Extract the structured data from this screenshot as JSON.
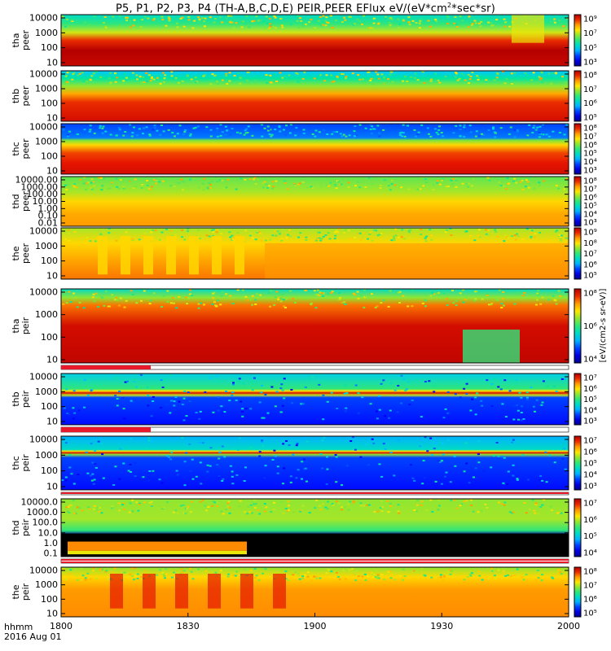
{
  "title": "P5, P1, P2, P3, P4 (TH-A,B,C,D,E) PEIR,PEER EFlux eV/(eV*cm2*sec*sr)",
  "title_parts": {
    "prefix": "P5, P1, P2, P3, P4 (TH-A,B,C,D,E) PEIR,PEER EFlux eV/(eV*cm",
    "sup": "2",
    "suffix": "*sec*sr)"
  },
  "footer": {
    "time_label": "hhmm",
    "date_label": "2016 Aug 01"
  },
  "colorbar_label": "[eV/(cm2-s sr-eV)]",
  "chart_data": {
    "type": "heatmap",
    "x_axis": {
      "range": [
        1800,
        2000
      ],
      "ticks": [
        1800,
        1830,
        1900,
        1930,
        2000
      ],
      "units": "hhmm"
    },
    "panels": [
      {
        "probe": "tha",
        "species": "peer",
        "ylabel_top": "tha",
        "ylabel_bottom": "peer",
        "yticks": [
          "10000",
          "1000",
          "100",
          "10"
        ],
        "log_scale": true,
        "colorbar_ticks": [
          "10⁹",
          "10⁷",
          "10⁵",
          "10³"
        ]
      },
      {
        "probe": "thb",
        "species": "peer",
        "ylabel_top": "thb",
        "ylabel_bottom": "peer",
        "yticks": [
          "10000",
          "1000",
          "100",
          "10"
        ],
        "log_scale": true,
        "colorbar_ticks": [
          "10⁸",
          "10⁷",
          "10⁶",
          "10⁵"
        ]
      },
      {
        "probe": "thc",
        "species": "peer",
        "ylabel_top": "thc",
        "ylabel_bottom": "peer",
        "yticks": [
          "10000",
          "1000",
          "100",
          "10"
        ],
        "log_scale": true,
        "colorbar_ticks": [
          "10⁸",
          "10⁷",
          "10⁶",
          "10⁵",
          "10⁴",
          "10³"
        ]
      },
      {
        "probe": "thd",
        "species": "peer",
        "ylabel_top": "thd",
        "ylabel_bottom": "peer",
        "yticks": [
          "10000.00",
          "1000.00",
          "100.00",
          "10.00",
          "1.00",
          "0.10",
          "0.01"
        ],
        "log_scale": true,
        "colorbar_ticks": [
          "10⁸",
          "10⁷",
          "10⁶",
          "10⁵",
          "10⁴",
          "10³"
        ]
      },
      {
        "probe": "the",
        "species": "peer",
        "ylabel_top": "the",
        "ylabel_bottom": "peer",
        "yticks": [
          "10000",
          "1000",
          "100",
          "10"
        ],
        "log_scale": true,
        "colorbar_ticks": [
          "10⁹",
          "10⁸",
          "10⁷",
          "10⁶",
          "10⁵"
        ]
      },
      {
        "probe": "tha",
        "species": "peir",
        "ylabel_top": "tha",
        "ylabel_bottom": "peir",
        "yticks": [
          "10000",
          "1000",
          "100",
          "10"
        ],
        "log_scale": true,
        "colorbar_ticks": [
          "10⁸",
          "10⁶",
          "10⁴"
        ]
      },
      {
        "probe": "thb",
        "species": "peir",
        "ylabel_top": "thb",
        "ylabel_bottom": "peir",
        "yticks": [
          "10000",
          "1000",
          "100",
          "10"
        ],
        "log_scale": true,
        "colorbar_ticks": [
          "10⁷",
          "10⁶",
          "10⁵",
          "10⁴",
          "10³"
        ]
      },
      {
        "probe": "thc",
        "species": "peir",
        "ylabel_top": "thc",
        "ylabel_bottom": "peir",
        "yticks": [
          "10000",
          "1000",
          "100",
          "10"
        ],
        "log_scale": true,
        "colorbar_ticks": [
          "10⁷",
          "10⁶",
          "10⁵",
          "10⁴",
          "10³"
        ]
      },
      {
        "probe": "thd",
        "species": "peir",
        "ylabel_top": "thd",
        "ylabel_bottom": "peir",
        "yticks": [
          "10000.0",
          "1000.0",
          "100.0",
          "10.0",
          "1.0",
          "0.1"
        ],
        "log_scale": true,
        "colorbar_ticks": [
          "10⁷",
          "10⁶",
          "10⁵",
          "10⁴"
        ]
      },
      {
        "probe": "the",
        "species": "peir",
        "ylabel_top": "the",
        "ylabel_bottom": "peir",
        "yticks": [
          "10000",
          "1000",
          "100",
          "10"
        ],
        "log_scale": true,
        "colorbar_ticks": [
          "10⁸",
          "10⁷",
          "10⁶",
          "10⁵"
        ]
      }
    ]
  }
}
